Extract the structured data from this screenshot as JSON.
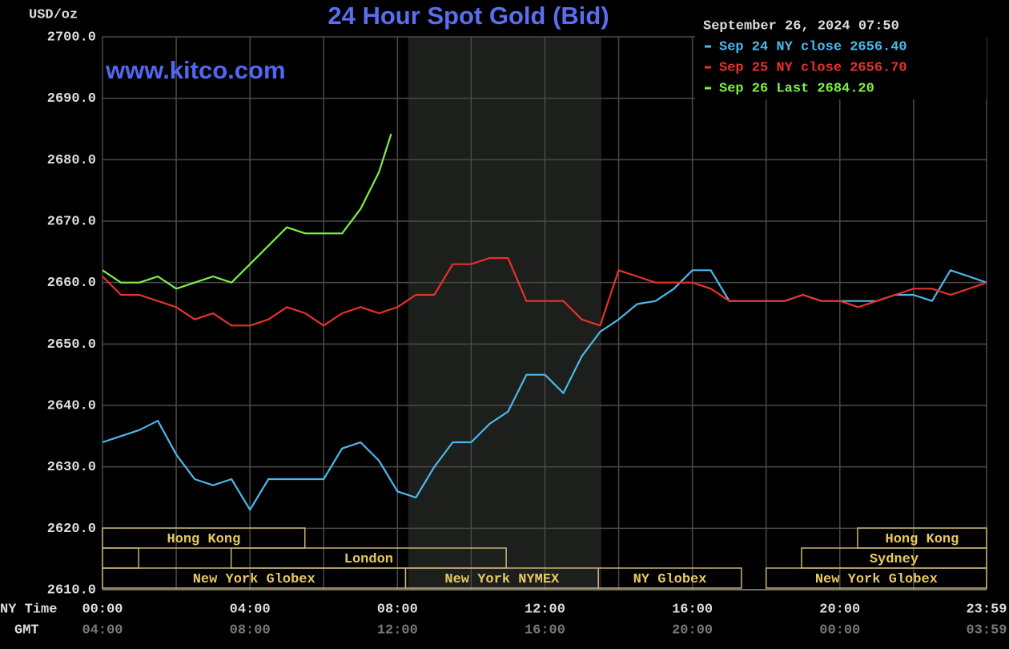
{
  "chart_data": {
    "type": "line",
    "title": "24 Hour Spot Gold (Bid)",
    "y_label": "USD/oz",
    "watermark": "www.kitco.com",
    "timestamp": "September 26, 2024 07:50",
    "x_axis_labels": [
      "NY Time",
      "GMT"
    ],
    "xlim": [
      0,
      23.98
    ],
    "ylim": [
      2610,
      2700
    ],
    "xticks": [
      {
        "value": 0,
        "label": "00:00"
      },
      {
        "value": 4,
        "label": "04:00"
      },
      {
        "value": 8,
        "label": "08:00"
      },
      {
        "value": 12,
        "label": "12:00"
      },
      {
        "value": 16,
        "label": "16:00"
      },
      {
        "value": 20,
        "label": "20:00"
      },
      {
        "value": 23.98,
        "label": "23:59"
      }
    ],
    "gmt_labels": [
      "04:00",
      "08:00",
      "12:00",
      "16:00",
      "20:00",
      "00:00",
      "03:59"
    ],
    "x_minor_grid": [
      2,
      6,
      10,
      14,
      18,
      22
    ],
    "yticks": [
      {
        "value": 2610,
        "label": "2610.0"
      },
      {
        "value": 2620,
        "label": "2620.0"
      },
      {
        "value": 2630,
        "label": "2630.0"
      },
      {
        "value": 2640,
        "label": "2640.0"
      },
      {
        "value": 2650,
        "label": "2650.0"
      },
      {
        "value": 2660,
        "label": "2660.0"
      },
      {
        "value": 2670,
        "label": "2670.0"
      },
      {
        "value": 2680,
        "label": "2680.0"
      },
      {
        "value": 2690,
        "label": "2690.0"
      },
      {
        "value": 2700,
        "label": "2700.0"
      }
    ],
    "grid": true,
    "legend": "top-right",
    "shaded_range": [
      8.29,
      13.53
    ],
    "series": [
      {
        "name": "Sep 24 NY close 2656.40",
        "color": "#4cb8ec",
        "x": [
          0,
          0.5,
          1,
          1.5,
          2,
          2.5,
          3,
          3.5,
          4,
          4.5,
          5,
          5.5,
          6,
          6.5,
          7,
          7.5,
          8,
          8.5,
          9,
          9.5,
          10,
          10.5,
          11,
          11.5,
          12,
          12.5,
          13,
          13.5,
          14,
          14.5,
          15,
          15.5,
          16,
          16.5,
          17,
          17.5,
          18,
          18.5,
          19,
          19.5,
          20,
          20.5,
          21,
          21.5,
          22,
          22.5,
          23,
          23.5,
          23.98
        ],
        "values": [
          2634,
          2635,
          2636,
          2637.5,
          2632,
          2628,
          2627,
          2628,
          2623,
          2628,
          2628,
          2628,
          2628,
          2633,
          2634,
          2631,
          2626,
          2625,
          2630,
          2634,
          2634,
          2637,
          2639,
          2645,
          2645,
          2642,
          2648,
          2652,
          2654,
          2656.5,
          2657,
          2659,
          2662,
          2662,
          2657,
          2657,
          2657,
          2657,
          2658,
          2657,
          2657,
          2657,
          2657,
          2658,
          2658,
          2657,
          2662,
          2661,
          2660
        ]
      },
      {
        "name": "Sep 25 NY close 2656.70",
        "color": "#e8322a",
        "x": [
          0,
          0.5,
          1,
          1.5,
          2,
          2.5,
          3,
          3.5,
          4,
          4.5,
          5,
          5.5,
          6,
          6.5,
          7,
          7.5,
          8,
          8.5,
          9,
          9.5,
          10,
          10.5,
          11,
          11.5,
          12,
          12.5,
          13,
          13.5,
          14,
          14.5,
          15,
          15.5,
          16,
          16.5,
          17,
          17.5,
          18,
          18.5,
          19,
          19.5,
          20,
          20.5,
          21,
          21.5,
          22,
          22.5,
          23,
          23.5,
          23.98
        ],
        "values": [
          2661,
          2658,
          2658,
          2657,
          2656,
          2654,
          2655,
          2653,
          2653,
          2654,
          2656,
          2655,
          2653,
          2655,
          2656,
          2655,
          2656,
          2658,
          2658,
          2663,
          2663,
          2664,
          2664,
          2657,
          2657,
          2657,
          2654,
          2653,
          2662,
          2661,
          2660,
          2660,
          2660,
          2659,
          2657,
          2657,
          2657,
          2657,
          2658,
          2657,
          2657,
          2656,
          2657,
          2658,
          2659,
          2659,
          2658,
          2659,
          2660
        ]
      },
      {
        "name": "Sep 26 Last 2684.20",
        "color": "#7ef048",
        "x": [
          0,
          0.5,
          1,
          1.5,
          2,
          2.5,
          3,
          3.5,
          4,
          4.5,
          5,
          5.5,
          6,
          6.5,
          7,
          7.5,
          7.83
        ],
        "values": [
          2662,
          2660,
          2660,
          2661,
          2659,
          2660,
          2661,
          2660,
          2663,
          2666,
          2669,
          2668,
          2668,
          2668,
          2672,
          2678,
          2684.2
        ]
      }
    ],
    "sessions": [
      [
        {
          "label": "Hong Kong",
          "start": 0,
          "end": 5.49
        },
        {
          "label": "Hong Kong",
          "start": 20.48,
          "end": 23.98
        }
      ],
      [
        {
          "label": null,
          "start": 0,
          "end": 0.98
        },
        {
          "label": "London",
          "start": 3.49,
          "end": 10.95
        },
        {
          "label": "Sydney",
          "start": 18.96,
          "end": 23.98
        }
      ],
      [
        {
          "label": "New York Globex",
          "start": 0,
          "end": 8.22
        },
        {
          "label": "New York NYMEX",
          "start": 8.22,
          "end": 13.45
        },
        {
          "label": "NY Globex",
          "start": 13.45,
          "end": 17.33
        },
        {
          "label": "New York Globex",
          "start": 18.0,
          "end": 23.98
        }
      ]
    ]
  }
}
